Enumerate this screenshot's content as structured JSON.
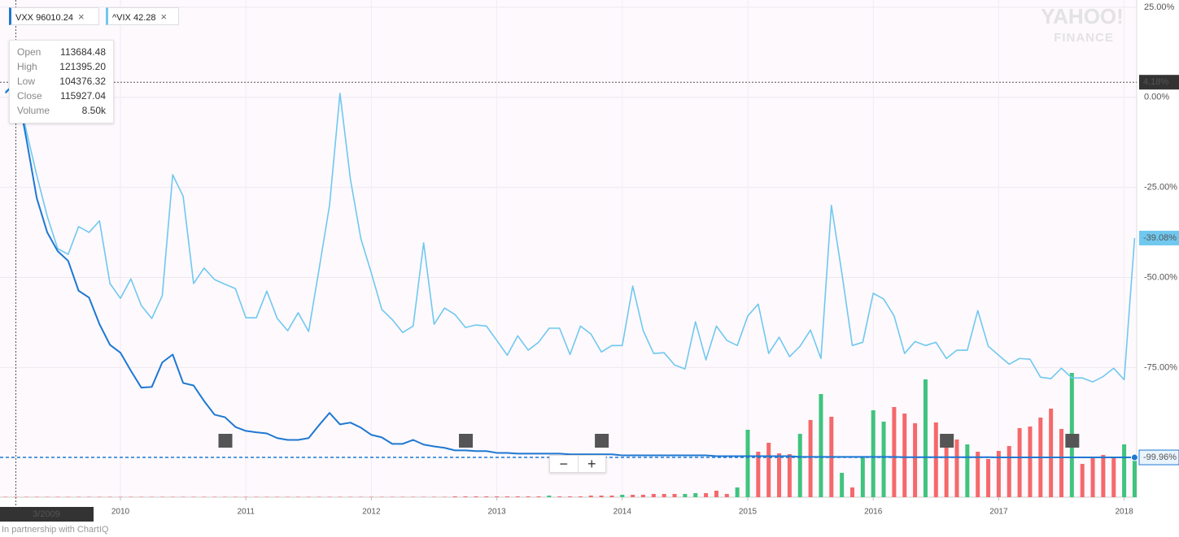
{
  "chart_data": {
    "type": "line",
    "watermark": [
      "YAHOO!",
      "FINANCE"
    ],
    "credit": "In partnership with ChartIQ",
    "zoom_buttons": [
      "−",
      "+"
    ],
    "x": [
      "2/2009",
      "3/2009",
      "4/2009",
      "5/2009",
      "6/2009",
      "7/2009",
      "8/2009",
      "9/2009",
      "10/2009",
      "11/2009",
      "12/2009",
      "1/2010",
      "2/2010",
      "3/2010",
      "4/2010",
      "5/2010",
      "6/2010",
      "7/2010",
      "8/2010",
      "9/2010",
      "10/2010",
      "11/2010",
      "12/2010",
      "1/2011",
      "2/2011",
      "3/2011",
      "4/2011",
      "5/2011",
      "6/2011",
      "7/2011",
      "8/2011",
      "9/2011",
      "10/2011",
      "11/2011",
      "12/2011",
      "1/2012",
      "2/2012",
      "3/2012",
      "4/2012",
      "5/2012",
      "6/2012",
      "7/2012",
      "8/2012",
      "9/2012",
      "10/2012",
      "11/2012",
      "12/2012",
      "1/2013",
      "2/2013",
      "3/2013",
      "4/2013",
      "5/2013",
      "6/2013",
      "7/2013",
      "8/2013",
      "9/2013",
      "10/2013",
      "11/2013",
      "12/2013",
      "1/2014",
      "2/2014",
      "3/2014",
      "4/2014",
      "5/2014",
      "6/2014",
      "7/2014",
      "8/2014",
      "9/2014",
      "10/2014",
      "11/2014",
      "12/2014",
      "1/2015",
      "2/2015",
      "3/2015",
      "4/2015",
      "5/2015",
      "6/2015",
      "7/2015",
      "8/2015",
      "9/2015",
      "10/2015",
      "11/2015",
      "12/2015",
      "1/2016",
      "2/2016",
      "3/2016",
      "4/2016",
      "5/2016",
      "6/2016",
      "7/2016",
      "8/2016",
      "9/2016",
      "10/2016",
      "11/2016",
      "12/2016",
      "1/2017",
      "2/2017",
      "3/2017",
      "4/2017",
      "5/2017",
      "6/2017",
      "7/2017",
      "8/2017",
      "9/2017",
      "10/2017",
      "11/2017",
      "12/2017",
      "1/2018",
      "2/2018"
    ],
    "xticks": [
      {
        "value": "1/2010",
        "label": "2010"
      },
      {
        "value": "1/2011",
        "label": "2011"
      },
      {
        "value": "1/2012",
        "label": "2012"
      },
      {
        "value": "1/2013",
        "label": "2013"
      },
      {
        "value": "1/2014",
        "label": "2014"
      },
      {
        "value": "1/2015",
        "label": "2015"
      },
      {
        "value": "1/2016",
        "label": "2016"
      },
      {
        "value": "1/2017",
        "label": "2017"
      },
      {
        "value": "1/2018",
        "label": "2018"
      }
    ],
    "ylim": [
      -111,
      27
    ],
    "yticks": [
      {
        "value": 25,
        "label": "25.00%"
      },
      {
        "value": 0,
        "label": "0.00%"
      },
      {
        "value": -25,
        "label": "-25.00%"
      },
      {
        "value": -50,
        "label": "-50.00%"
      },
      {
        "value": -75,
        "label": "-75.00%"
      }
    ],
    "grid": true,
    "series": [
      {
        "name": "VXX",
        "quote": "96010.24",
        "color": "#1e78d2",
        "last_label": "-99.96%",
        "values": [
          1.2,
          4.18,
          -11.5,
          -28,
          -37.5,
          -42.7,
          -45.4,
          -53.7,
          -55.6,
          -63,
          -68.7,
          -70.9,
          -75.9,
          -80.6,
          -80.4,
          -73.6,
          -71.4,
          -79.3,
          -80,
          -84.3,
          -88.1,
          -88.8,
          -91.5,
          -92.6,
          -93,
          -93.3,
          -94.6,
          -95.1,
          -95.1,
          -94.6,
          -91,
          -87.6,
          -90.8,
          -90.3,
          -91.7,
          -93.7,
          -94.4,
          -96.2,
          -96.2,
          -95.1,
          -96.4,
          -96.9,
          -97.3,
          -98,
          -98,
          -98.2,
          -98.2,
          -98.7,
          -98.7,
          -98.9,
          -98.9,
          -98.9,
          -98.9,
          -98.9,
          -99.1,
          -99.1,
          -99.1,
          -99.1,
          -99.1,
          -99.4,
          -99.4,
          -99.4,
          -99.4,
          -99.4,
          -99.4,
          -99.4,
          -99.4,
          -99.4,
          -99.6,
          -99.6,
          -99.6,
          -99.6,
          -99.6,
          -99.6,
          -99.6,
          -99.6,
          -99.8,
          -99.8,
          -99.8,
          -99.8,
          -99.8,
          -99.8,
          -99.8,
          -99.8,
          -99.8,
          -99.8,
          -99.9,
          -99.9,
          -99.9,
          -99.9,
          -99.9,
          -99.9,
          -99.9,
          -99.9,
          -99.9,
          -99.95,
          -99.95,
          -99.95,
          -99.95,
          -99.95,
          -99.95,
          -99.95,
          -99.95,
          -99.95,
          -99.95,
          -99.95,
          -99.95,
          -99.96,
          -99.96
        ]
      },
      {
        "name": "^VIX",
        "quote": "42.28",
        "color": "#70c8ef",
        "last_label": "-39.08%",
        "values": [
          1.6,
          3.8,
          -9.3,
          -21.7,
          -33,
          -42,
          -43.6,
          -35.9,
          -37.5,
          -34.3,
          -51.7,
          -55.8,
          -50.4,
          -57.8,
          -61.4,
          -55.1,
          -21.5,
          -27.5,
          -51.7,
          -47.4,
          -50.6,
          -51.9,
          -53.1,
          -61.2,
          -61.2,
          -53.8,
          -61.4,
          -64.8,
          -59.8,
          -65,
          -47.7,
          -30,
          1.1,
          -22.8,
          -39.3,
          -48.8,
          -58.9,
          -61.7,
          -65.3,
          -63.5,
          -40.4,
          -63,
          -58.5,
          -60.3,
          -63.9,
          -63.2,
          -63.5,
          -67.5,
          -71.6,
          -66.2,
          -70.2,
          -68,
          -64.1,
          -64.1,
          -71.4,
          -63.5,
          -65.7,
          -70.7,
          -68.9,
          -68.9,
          -52.4,
          -64.8,
          -71.1,
          -70.9,
          -74.3,
          -75.4,
          -62.3,
          -72.9,
          -63.5,
          -67.5,
          -68.9,
          -60.7,
          -57.4,
          -71.1,
          -66.6,
          -72,
          -69.1,
          -64.6,
          -72.5,
          -30,
          -48.8,
          -68.9,
          -68,
          -54.4,
          -56,
          -60.7,
          -71.1,
          -67.8,
          -68.9,
          -68,
          -72.5,
          -70.2,
          -70.2,
          -59.2,
          -69.1,
          -71.6,
          -74.1,
          -72.5,
          -72.7,
          -77.7,
          -78.1,
          -75.2,
          -77.9,
          -77.9,
          -79,
          -77.5,
          -75.2,
          -78.4,
          -39.08
        ]
      }
    ],
    "volume": {
      "ylim": [
        0,
        160
      ],
      "values": [
        0.5,
        0.5,
        0.5,
        0.5,
        0.5,
        0.5,
        0.5,
        0.5,
        0.5,
        0.5,
        0.5,
        0.5,
        0.5,
        0.5,
        0.5,
        0.5,
        0.5,
        0.5,
        0.5,
        0.5,
        0.5,
        0.5,
        0.5,
        0.5,
        0.5,
        0.5,
        0.5,
        0.5,
        0.5,
        0.5,
        0.5,
        0.5,
        0.5,
        0.5,
        0.5,
        0.5,
        0.5,
        0.5,
        0.5,
        0.5,
        0.5,
        0.5,
        0.5,
        1,
        1,
        1,
        1,
        1,
        1,
        1,
        1,
        1,
        2,
        1,
        1,
        1,
        2,
        2,
        2,
        3,
        3,
        3,
        4,
        4,
        4,
        4,
        5,
        5,
        8,
        4,
        12,
        83,
        56,
        67,
        54,
        53,
        78,
        95,
        127,
        99,
        30,
        12,
        50,
        107,
        93,
        111,
        103,
        91,
        145,
        92,
        77,
        71,
        65,
        56,
        47,
        57,
        63,
        85,
        87,
        98,
        109,
        84,
        153,
        41,
        50,
        52,
        49,
        65,
        45
      ],
      "colors": [
        "#f4696b",
        "#f4696b",
        "#f4696b",
        "#f4696b",
        "#f4696b",
        "#f4696b",
        "#f4696b",
        "#f4696b",
        "#f4696b",
        "#f4696b",
        "#f4696b",
        "#f4696b",
        "#f4696b",
        "#f4696b",
        "#f4696b",
        "#f4696b",
        "#f4696b",
        "#f4696b",
        "#f4696b",
        "#f4696b",
        "#f4696b",
        "#f4696b",
        "#f4696b",
        "#f4696b",
        "#f4696b",
        "#f4696b",
        "#f4696b",
        "#f4696b",
        "#f4696b",
        "#f4696b",
        "#f4696b",
        "#f4696b",
        "#f4696b",
        "#f4696b",
        "#f4696b",
        "#f4696b",
        "#f4696b",
        "#f4696b",
        "#f4696b",
        "#f4696b",
        "#f4696b",
        "#f4696b",
        "#f4696b",
        "#f4696b",
        "#f4696b",
        "#f4696b",
        "#f4696b",
        "#f4696b",
        "#f4696b",
        "#f4696b",
        "#f4696b",
        "#f4696b",
        "#3fc47e",
        "#f4696b",
        "#f4696b",
        "#f4696b",
        "#f4696b",
        "#f4696b",
        "#f4696b",
        "#3fc47e",
        "#f4696b",
        "#f4696b",
        "#f4696b",
        "#f4696b",
        "#f4696b",
        "#3fc47e",
        "#3fc47e",
        "#f4696b",
        "#f4696b",
        "#f4696b",
        "#3fc47e",
        "#3fc47e",
        "#f4696b",
        "#f4696b",
        "#f4696b",
        "#f4696b",
        "#3fc47e",
        "#f4696b",
        "#3fc47e",
        "#f4696b",
        "#3fc47e",
        "#f4696b",
        "#3fc47e",
        "#3fc47e",
        "#3fc47e",
        "#f4696b",
        "#f4696b",
        "#f4696b",
        "#3fc47e",
        "#f4696b",
        "#f4696b",
        "#f4696b",
        "#3fc47e",
        "#f4696b",
        "#f4696b",
        "#f4696b",
        "#f4696b",
        "#f4696b",
        "#f4696b",
        "#f4696b",
        "#f4696b",
        "#f4696b",
        "#3fc47e",
        "#f4696b",
        "#f4696b",
        "#f4696b",
        "#f4696b",
        "#3fc47e",
        "#3fc47e"
      ]
    },
    "events": [
      {
        "label": "S",
        "x": "11/2010"
      },
      {
        "label": "S",
        "x": "10/2012"
      },
      {
        "label": "S",
        "x": "11/2013"
      },
      {
        "label": "S",
        "x": "8/2016"
      },
      {
        "label": "S",
        "x": "8/2017"
      }
    ],
    "crosshair": {
      "x": "3/2009",
      "y": 4.18,
      "y_label": "4.18%"
    },
    "tooltip": [
      {
        "label": "Open",
        "value": "113684.48"
      },
      {
        "label": "High",
        "value": "121395.20"
      },
      {
        "label": "Low",
        "value": "104376.32"
      },
      {
        "label": "Close",
        "value": "115927.04"
      },
      {
        "label": "Volume",
        "value": "8.50k"
      }
    ]
  }
}
